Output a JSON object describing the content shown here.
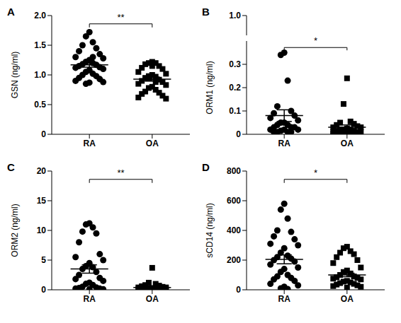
{
  "chart_data": [
    {
      "type": "scatter",
      "title": "A",
      "ylabel": "GSN (ng/ml)",
      "annotation": "**",
      "ylim": [
        0,
        2
      ],
      "yticks": [
        0,
        0.5,
        {
          "value": 1,
          "label": "1.0"
        },
        1.5,
        {
          "value": 2,
          "label": "2.0"
        }
      ],
      "series": [
        {
          "name": "RA",
          "marker": "circle",
          "color": "#000000",
          "mean": 1.17,
          "sem": 0.04,
          "values": [
            1.72,
            1.65,
            1.55,
            1.5,
            1.45,
            1.4,
            1.35,
            1.3,
            1.28,
            1.25,
            1.22,
            1.2,
            1.18,
            1.17,
            1.15,
            1.13,
            1.12,
            1.1,
            1.08,
            1.05,
            1.02,
            1.0,
            0.98,
            0.95,
            0.93,
            0.9,
            0.88,
            0.87,
            0.85,
            1.3
          ]
        },
        {
          "name": "OA",
          "marker": "square",
          "color": "#000000",
          "mean": 0.93,
          "sem": 0.035,
          "values": [
            1.22,
            1.2,
            1.2,
            1.18,
            1.15,
            1.12,
            1.1,
            1.05,
            1.02,
            1.0,
            0.98,
            0.97,
            0.95,
            0.92,
            0.9,
            0.88,
            0.85,
            0.83,
            0.8,
            0.78,
            0.75,
            0.72,
            0.7,
            0.68,
            0.65,
            0.62,
            0.6,
            1.15,
            0.95,
            0.88
          ]
        }
      ]
    },
    {
      "type": "scatter",
      "title": "B",
      "ylabel": "ORM1 (ng/ml)",
      "annotation": "*",
      "ylim": [
        0,
        1
      ],
      "ybreak": [
        0.4,
        0.96
      ],
      "yticks": [
        0,
        0.1,
        0.2,
        0.3,
        {
          "value": 1,
          "label": "1.0"
        }
      ],
      "series": [
        {
          "name": "RA",
          "marker": "circle",
          "color": "#000000",
          "mean": 0.08,
          "sem": 0.025,
          "values": [
            0.35,
            0.34,
            0.23,
            0.12,
            0.1,
            0.09,
            0.08,
            0.07,
            0.06,
            0.05,
            0.05,
            0.04,
            0.04,
            0.03,
            0.03,
            0.03,
            0.02,
            0.02,
            0.02,
            0.015,
            0.01,
            0.01,
            0.01,
            0.01
          ]
        },
        {
          "name": "OA",
          "marker": "square",
          "color": "#000000",
          "mean": 0.03,
          "sem": 0.01,
          "values": [
            0.24,
            0.13,
            0.055,
            0.05,
            0.045,
            0.04,
            0.035,
            0.03,
            0.03,
            0.025,
            0.02,
            0.02,
            0.02,
            0.015,
            0.015,
            0.01,
            0.01,
            0.01,
            0.008,
            0.005,
            0.005,
            0.005,
            0.005,
            0.005,
            0.003,
            0.003
          ]
        }
      ]
    },
    {
      "type": "scatter",
      "title": "C",
      "ylabel": "ORM2 (ng/ml)",
      "annotation": "**",
      "ylim": [
        0,
        20
      ],
      "yticks": [
        0,
        5,
        10,
        15,
        20
      ],
      "series": [
        {
          "name": "RA",
          "marker": "circle",
          "color": "#000000",
          "mean": 3.5,
          "sem": 0.7,
          "values": [
            11.2,
            11,
            10.5,
            9.8,
            9.5,
            8,
            6,
            5.5,
            5,
            4.5,
            4,
            3.8,
            3.5,
            3,
            2.5,
            2,
            1.8,
            1.5,
            1.2,
            1,
            0.8,
            0.5,
            0.4,
            0.3,
            0.2,
            0.2,
            0.1,
            0.1
          ]
        },
        {
          "name": "OA",
          "marker": "square",
          "color": "#000000",
          "mean": 0.4,
          "sem": 0.15,
          "values": [
            3.7,
            1.2,
            1,
            0.8,
            0.7,
            0.6,
            0.5,
            0.4,
            0.4,
            0.3,
            0.3,
            0.2,
            0.2,
            0.2,
            0.1,
            0.1,
            0.1,
            0.05,
            0.05,
            0.05
          ]
        }
      ]
    },
    {
      "type": "scatter",
      "title": "D",
      "ylabel": "sCD14 (ng/ml)",
      "annotation": "*",
      "ylim": [
        0,
        800
      ],
      "yticks": [
        0,
        200,
        400,
        600,
        800
      ],
      "series": [
        {
          "name": "RA",
          "marker": "circle",
          "color": "#000000",
          "mean": 205,
          "sem": 30,
          "values": [
            580,
            540,
            480,
            400,
            390,
            360,
            340,
            310,
            300,
            280,
            250,
            230,
            220,
            210,
            200,
            190,
            170,
            150,
            140,
            120,
            100,
            90,
            80,
            70,
            60,
            40,
            30,
            20,
            10,
            5
          ]
        },
        {
          "name": "OA",
          "marker": "square",
          "color": "#000000",
          "mean": 100,
          "sem": 12,
          "values": [
            290,
            280,
            260,
            250,
            240,
            220,
            200,
            180,
            150,
            130,
            120,
            110,
            100,
            90,
            85,
            80,
            75,
            70,
            60,
            55,
            50,
            45,
            40,
            35,
            30,
            25,
            20,
            15
          ]
        }
      ]
    }
  ]
}
